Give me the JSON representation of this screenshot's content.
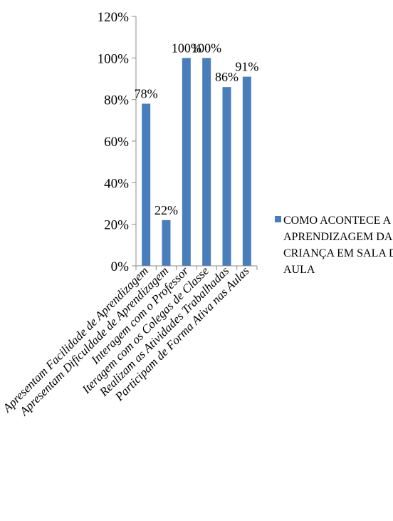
{
  "chart_data": {
    "type": "bar",
    "categories": [
      "Apresentam Facilidade de Aprendizagem",
      "Apresentam Dificuldade de Aprendizagem",
      "Interagem com o Professor",
      "Iteragem com os Colegas de Classe",
      "Realizam as Atividades Trabalhadas",
      "Participam de Forma Ativa nas Aulas"
    ],
    "series": [
      {
        "name": "COMO ACONTECE A APRENDIZAGEM DA CRIANÇA EM SALA DE AULA",
        "values": [
          78,
          22,
          100,
          100,
          86,
          91
        ],
        "data_labels": [
          "78%",
          "22%",
          "100%",
          "100%",
          "86%",
          "91%"
        ],
        "color": "#4a7ebb"
      }
    ],
    "ylim": [
      0,
      120
    ],
    "y_ticks": [
      "0%",
      "20%",
      "40%",
      "60%",
      "80%",
      "100%",
      "120%"
    ],
    "grid": false,
    "legend_position": "right",
    "legend_lines": [
      "COMO ACONTECE A",
      "APRENDIZAGEM DA",
      "CRIANÇA EM SALA DE",
      "AULA"
    ]
  }
}
